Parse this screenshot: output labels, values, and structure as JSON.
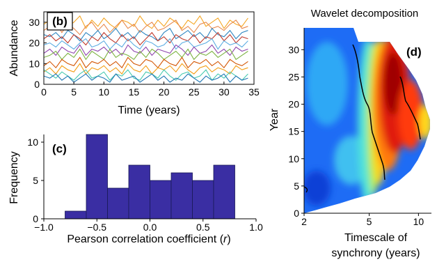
{
  "chart_data": [
    {
      "panel": "(b)",
      "type": "line",
      "xlabel": "Time (years)",
      "ylabel": "Abundance",
      "xlim": [
        0,
        35
      ],
      "ylim": [
        0,
        35
      ],
      "xticks": [
        0,
        5,
        10,
        15,
        20,
        25,
        30,
        35
      ],
      "yticks": [
        0,
        10,
        20,
        30
      ],
      "x": [
        0,
        1,
        2,
        3,
        4,
        5,
        6,
        7,
        8,
        9,
        10,
        11,
        12,
        13,
        14,
        15,
        16,
        17,
        18,
        19,
        20,
        21,
        22,
        23,
        24,
        25,
        26,
        27,
        28,
        29,
        30,
        31,
        32,
        33,
        34
      ],
      "series": [
        {
          "color": "#f5a623",
          "values": [
            29,
            31,
            27,
            32,
            28,
            30,
            33,
            27,
            31,
            28,
            32,
            29,
            27,
            31,
            30,
            28,
            33,
            29,
            27,
            31,
            28,
            32,
            30,
            27,
            31,
            29,
            33,
            28,
            30,
            32,
            27,
            31,
            29,
            28,
            32
          ]
        },
        {
          "color": "#e8884a",
          "values": [
            26,
            28,
            30,
            25,
            29,
            27,
            24,
            28,
            30,
            26,
            29,
            25,
            28,
            31,
            27,
            29,
            25,
            28,
            30,
            26,
            27,
            29,
            31,
            26,
            28,
            25,
            29,
            30,
            27,
            28,
            26,
            29,
            31,
            27,
            28
          ]
        },
        {
          "color": "#2e86c1",
          "values": [
            24,
            23,
            25,
            22,
            26,
            24,
            21,
            25,
            23,
            26,
            22,
            24,
            27,
            23,
            25,
            22,
            26,
            24,
            23,
            21,
            25,
            27,
            22,
            24,
            26,
            23,
            25,
            22,
            27,
            24,
            23,
            26,
            22,
            25,
            26
          ]
        },
        {
          "color": "#c0392b",
          "values": [
            22,
            24,
            21,
            23,
            20,
            24,
            22,
            19,
            23,
            21,
            25,
            22,
            20,
            24,
            21,
            23,
            19,
            22,
            25,
            21,
            23,
            20,
            24,
            22,
            21,
            24,
            20,
            23,
            22,
            25,
            21,
            24,
            20,
            23,
            22
          ]
        },
        {
          "color": "#5dade2",
          "values": [
            19,
            20,
            18,
            21,
            19,
            17,
            20,
            22,
            18,
            19,
            21,
            17,
            20,
            18,
            22,
            19,
            17,
            21,
            20,
            18,
            19,
            22,
            17,
            20,
            21,
            18,
            19,
            20,
            22,
            17,
            21,
            19,
            20,
            18,
            21
          ]
        },
        {
          "color": "#8e44ad",
          "values": [
            15,
            17,
            14,
            18,
            16,
            15,
            19,
            14,
            17,
            16,
            18,
            15,
            17,
            14,
            19,
            16,
            15,
            18,
            14,
            17,
            16,
            15,
            19,
            17,
            14,
            18,
            15,
            16,
            19,
            15,
            17,
            14,
            18,
            16,
            17
          ]
        },
        {
          "color": "#7cb342",
          "values": [
            13,
            14,
            16,
            12,
            15,
            13,
            17,
            12,
            16,
            14,
            12,
            17,
            13,
            15,
            14,
            12,
            16,
            13,
            17,
            15,
            12,
            14,
            16,
            13,
            17,
            12,
            15,
            14,
            16,
            13,
            15,
            17,
            12,
            14,
            16
          ]
        },
        {
          "color": "#d35400",
          "values": [
            9,
            11,
            8,
            12,
            10,
            9,
            13,
            8,
            11,
            10,
            12,
            9,
            11,
            8,
            13,
            10,
            9,
            12,
            11,
            8,
            12,
            10,
            9,
            13,
            8,
            11,
            10,
            12,
            9,
            11,
            8,
            12,
            10,
            9,
            11
          ]
        },
        {
          "color": "#f39c12",
          "values": [
            6,
            8,
            5,
            9,
            7,
            6,
            10,
            5,
            8,
            7,
            9,
            6,
            8,
            5,
            10,
            7,
            6,
            9,
            5,
            8,
            7,
            9,
            6,
            10,
            7,
            5,
            8,
            9,
            6,
            8,
            7,
            5,
            9,
            7,
            8
          ]
        },
        {
          "color": "#48c9b0",
          "values": [
            7,
            5,
            3,
            6,
            4,
            2,
            5,
            7,
            3,
            4,
            6,
            2,
            5,
            4,
            7,
            3,
            2,
            6,
            5,
            3,
            7,
            4,
            2,
            5,
            6,
            3,
            4,
            7,
            2,
            5,
            3,
            6,
            4,
            2,
            5
          ]
        },
        {
          "color": "#1f77b4",
          "values": [
            4,
            3,
            5,
            2,
            4,
            1,
            3,
            5,
            2,
            4,
            3,
            1,
            5,
            2,
            3,
            4,
            1,
            3,
            5,
            2,
            4,
            1,
            3,
            2,
            5,
            3,
            1,
            4,
            2,
            3,
            5,
            1,
            4,
            2,
            3
          ]
        }
      ]
    },
    {
      "panel": "(c)",
      "type": "bar",
      "xlabel": "Pearson correlation coefficient (r)",
      "xlabel_main": "Pearson correlation coefficient (",
      "xlabel_var": "r",
      "xlabel_end": ")",
      "ylabel": "Frequency",
      "xlim": [
        -1.0,
        1.0
      ],
      "ylim": [
        0,
        11
      ],
      "xticks": [
        "−1.0",
        "−0.5",
        "0.0",
        "0.5",
        "1.0"
      ],
      "xtick_values": [
        -1.0,
        -0.5,
        0.0,
        0.5,
        1.0
      ],
      "yticks": [
        0,
        5,
        10
      ],
      "bin_edges": [
        -0.8,
        -0.6,
        -0.4,
        -0.2,
        0.0,
        0.2,
        0.4,
        0.6,
        0.8
      ],
      "values": [
        1,
        11,
        4,
        7,
        5,
        6,
        5,
        7
      ],
      "bar_color": "#3a2ea3"
    },
    {
      "panel": "(d)",
      "type": "heatmap",
      "title": "Wavelet decomposition",
      "xlabel_line1": "Timescale of",
      "xlabel_line2": "synchrony (years)",
      "ylabel": "Year",
      "xscale": "log",
      "xlim": [
        2,
        12
      ],
      "ylim": [
        0,
        34
      ],
      "xticks": [
        2,
        5,
        10
      ],
      "yticks": [
        0,
        5,
        10,
        15,
        20,
        25,
        30
      ],
      "colormap": "jet",
      "hot_region_timescale_years": [
        4.5,
        7.5
      ],
      "cool_region_timescale_years": [
        2,
        4
      ]
    }
  ]
}
